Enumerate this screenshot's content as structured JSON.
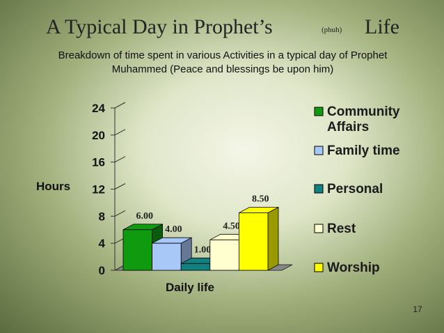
{
  "slide": {
    "title": "A Typical Day in Prophet’s",
    "title_note": "(pbuh)",
    "title_end": "Life",
    "subtitle": "Breakdown of time spent in various Activities in a typical day of Prophet Muhammed (Peace and blessings be upon him)",
    "page_number": "17"
  },
  "chart_data": {
    "type": "bar3d",
    "categories": [
      "Daily life"
    ],
    "x_label": "Daily life",
    "y_label": "Hours",
    "ylim": [
      0,
      24
    ],
    "yticks": [
      0,
      4,
      8,
      12,
      16,
      20,
      24
    ],
    "series": [
      {
        "name": "Community Affairs",
        "color": "#109a10",
        "values": [
          6.0
        ],
        "value_labels": [
          "6.00"
        ]
      },
      {
        "name": "Family time",
        "color": "#a8c8f8",
        "values": [
          4.0
        ],
        "value_labels": [
          "4.00"
        ]
      },
      {
        "name": "Personal",
        "color": "#108080",
        "values": [
          1.0
        ],
        "value_labels": [
          "1.00"
        ]
      },
      {
        "name": "Rest",
        "color": "#ffffd0",
        "values": [
          4.5
        ],
        "value_labels": [
          "4.50"
        ]
      },
      {
        "name": "Worship",
        "color": "#ffff00",
        "values": [
          8.5
        ],
        "value_labels": [
          "8.50"
        ]
      }
    ]
  }
}
